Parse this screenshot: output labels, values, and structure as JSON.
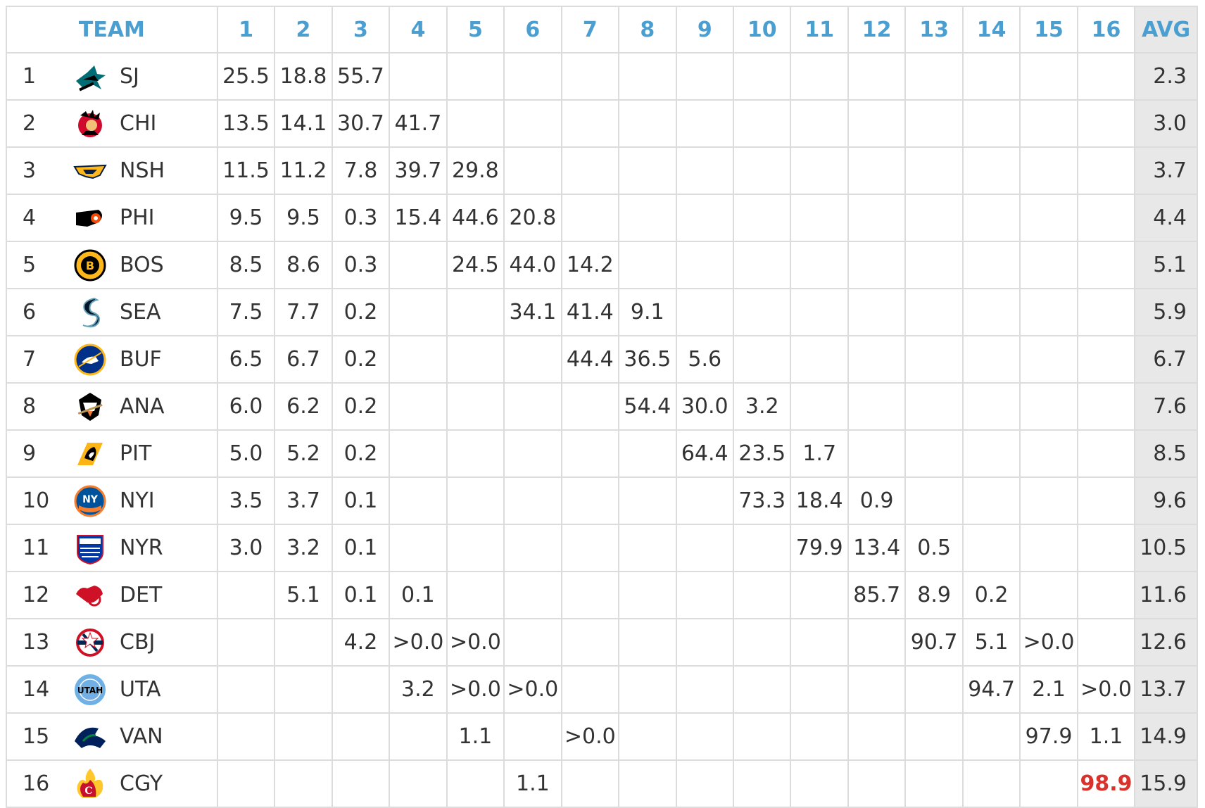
{
  "chart_data": {
    "type": "table",
    "header": {
      "team": "TEAM",
      "rounds": [
        "1",
        "2",
        "3",
        "4",
        "5",
        "6",
        "7",
        "8",
        "9",
        "10",
        "11",
        "12",
        "13",
        "14",
        "15",
        "16"
      ],
      "avg": "AVG"
    },
    "highlight_color": "#d9312b",
    "header_color": "#4a9fd0",
    "rows": [
      {
        "rank": "1",
        "abbr": "SJ",
        "logo": "sharks-logo-icon",
        "cells": [
          "25.5",
          "18.8",
          "55.7",
          "",
          "",
          "",
          "",
          "",
          "",
          "",
          "",
          "",
          "",
          "",
          "",
          ""
        ],
        "avg": "2.3"
      },
      {
        "rank": "2",
        "abbr": "CHI",
        "logo": "blackhawks-logo-icon",
        "cells": [
          "13.5",
          "14.1",
          "30.7",
          "41.7",
          "",
          "",
          "",
          "",
          "",
          "",
          "",
          "",
          "",
          "",
          "",
          ""
        ],
        "avg": "3.0"
      },
      {
        "rank": "3",
        "abbr": "NSH",
        "logo": "predators-logo-icon",
        "cells": [
          "11.5",
          "11.2",
          "7.8",
          "39.7",
          "29.8",
          "",
          "",
          "",
          "",
          "",
          "",
          "",
          "",
          "",
          "",
          ""
        ],
        "avg": "3.7"
      },
      {
        "rank": "4",
        "abbr": "PHI",
        "logo": "flyers-logo-icon",
        "cells": [
          "9.5",
          "9.5",
          "0.3",
          "15.4",
          "44.6",
          "20.8",
          "",
          "",
          "",
          "",
          "",
          "",
          "",
          "",
          "",
          ""
        ],
        "avg": "4.4"
      },
      {
        "rank": "5",
        "abbr": "BOS",
        "logo": "bruins-logo-icon",
        "cells": [
          "8.5",
          "8.6",
          "0.3",
          "",
          "24.5",
          "44.0",
          "14.2",
          "",
          "",
          "",
          "",
          "",
          "",
          "",
          "",
          ""
        ],
        "avg": "5.1"
      },
      {
        "rank": "6",
        "abbr": "SEA",
        "logo": "kraken-logo-icon",
        "cells": [
          "7.5",
          "7.7",
          "0.2",
          "",
          "",
          "34.1",
          "41.4",
          "9.1",
          "",
          "",
          "",
          "",
          "",
          "",
          "",
          ""
        ],
        "avg": "5.9"
      },
      {
        "rank": "7",
        "abbr": "BUF",
        "logo": "sabres-logo-icon",
        "cells": [
          "6.5",
          "6.7",
          "0.2",
          "",
          "",
          "",
          "44.4",
          "36.5",
          "5.6",
          "",
          "",
          "",
          "",
          "",
          "",
          ""
        ],
        "avg": "6.7"
      },
      {
        "rank": "8",
        "abbr": "ANA",
        "logo": "ducks-logo-icon",
        "cells": [
          "6.0",
          "6.2",
          "0.2",
          "",
          "",
          "",
          "",
          "54.4",
          "30.0",
          "3.2",
          "",
          "",
          "",
          "",
          "",
          ""
        ],
        "avg": "7.6"
      },
      {
        "rank": "9",
        "abbr": "PIT",
        "logo": "penguins-logo-icon",
        "cells": [
          "5.0",
          "5.2",
          "0.2",
          "",
          "",
          "",
          "",
          "",
          "64.4",
          "23.5",
          "1.7",
          "",
          "",
          "",
          "",
          ""
        ],
        "avg": "8.5"
      },
      {
        "rank": "10",
        "abbr": "NYI",
        "logo": "islanders-logo-icon",
        "cells": [
          "3.5",
          "3.7",
          "0.1",
          "",
          "",
          "",
          "",
          "",
          "",
          "73.3",
          "18.4",
          "0.9",
          "",
          "",
          "",
          ""
        ],
        "avg": "9.6"
      },
      {
        "rank": "11",
        "abbr": "NYR",
        "logo": "rangers-logo-icon",
        "cells": [
          "3.0",
          "3.2",
          "0.1",
          "",
          "",
          "",
          "",
          "",
          "",
          "",
          "79.9",
          "13.4",
          "0.5",
          "",
          "",
          ""
        ],
        "avg": "10.5"
      },
      {
        "rank": "12",
        "abbr": "DET",
        "logo": "red-wings-logo-icon",
        "cells": [
          "",
          "5.1",
          "0.1",
          "0.1",
          "",
          "",
          "",
          "",
          "",
          "",
          "",
          "85.7",
          "8.9",
          "0.2",
          "",
          ""
        ],
        "avg": "11.6"
      },
      {
        "rank": "13",
        "abbr": "CBJ",
        "logo": "blue-jackets-logo-icon",
        "cells": [
          "",
          "",
          "4.2",
          ">0.0",
          ">0.0",
          "",
          "",
          "",
          "",
          "",
          "",
          "",
          "90.7",
          "5.1",
          ">0.0",
          ""
        ],
        "avg": "12.6"
      },
      {
        "rank": "14",
        "abbr": "UTA",
        "logo": "utah-logo-icon",
        "cells": [
          "",
          "",
          "",
          "3.2",
          ">0.0",
          ">0.0",
          "",
          "",
          "",
          "",
          "",
          "",
          "",
          "94.7",
          "2.1",
          ">0.0"
        ],
        "avg": "13.7"
      },
      {
        "rank": "15",
        "abbr": "VAN",
        "logo": "canucks-logo-icon",
        "cells": [
          "",
          "",
          "",
          "",
          "1.1",
          "",
          ">0.0",
          "",
          "",
          "",
          "",
          "",
          "",
          "",
          "97.9",
          "1.1"
        ],
        "avg": "14.9"
      },
      {
        "rank": "16",
        "abbr": "CGY",
        "logo": "flames-logo-icon",
        "cells": [
          "",
          "",
          "",
          "",
          "",
          "1.1",
          "",
          "",
          "",
          "",
          "",
          "",
          "",
          "",
          "",
          "98.9"
        ],
        "avg": "15.9",
        "highlight_index": 15
      }
    ]
  }
}
